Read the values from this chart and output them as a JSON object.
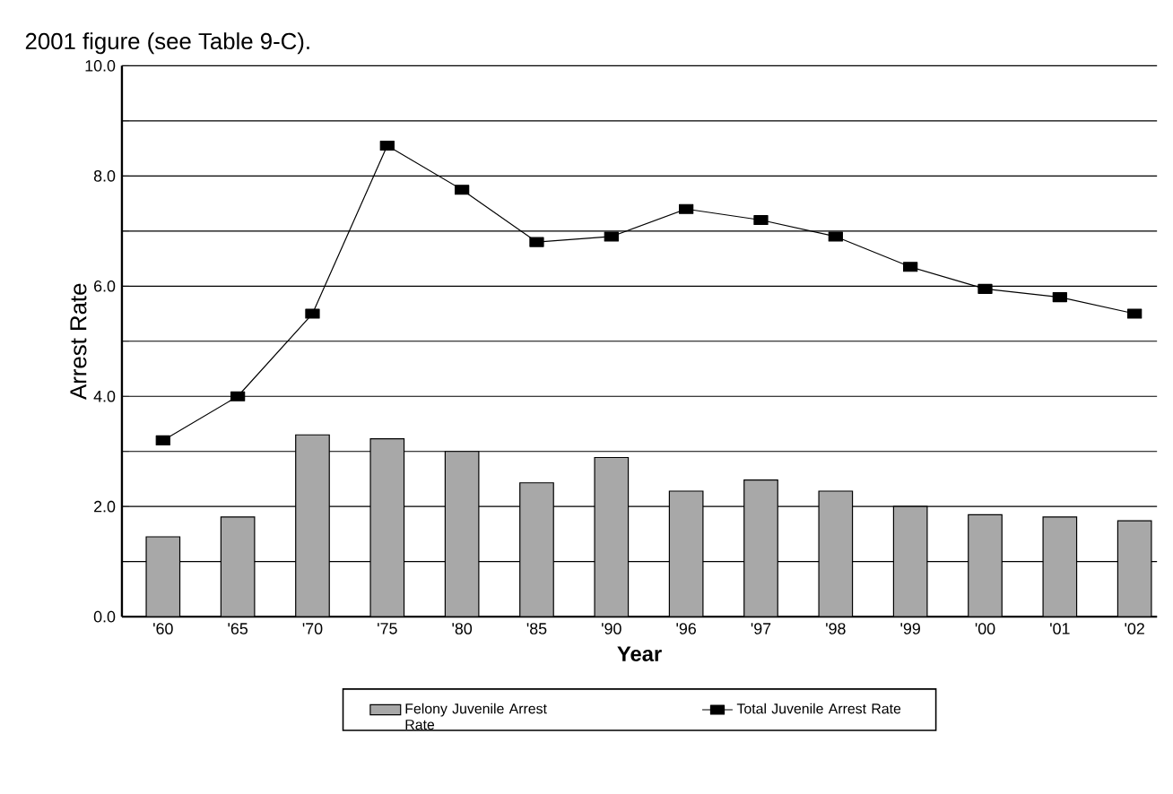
{
  "chart_data": {
    "type": "bar",
    "annotations": [
      "2001 figure (see Table 9-C)."
    ],
    "xlabel": "Year",
    "ylabel": "Arrest Rate",
    "categories": [
      "'60",
      "'65",
      "'70",
      "'75",
      "'80",
      "'85",
      "'90",
      "'96",
      "'97",
      "'98",
      "'99",
      "'00",
      "'01",
      "'02"
    ],
    "series": [
      {
        "name": "Felony Juvenile Arrest Rate",
        "color": "#a8a8a8",
        "values": [
          1.45,
          1.81,
          3.3,
          3.23,
          3.0,
          2.43,
          2.89,
          2.28,
          2.48,
          2.28,
          2.0,
          1.85,
          1.81,
          1.74
        ]
      },
      {
        "name": "Total Juvenile Arrest Rate",
        "type": "line",
        "color": "#000000",
        "marker": "square",
        "values": [
          3.2,
          4.0,
          5.5,
          8.55,
          7.75,
          6.8,
          6.9,
          7.4,
          7.2,
          6.9,
          6.35,
          5.95,
          5.8,
          5.5
        ]
      }
    ],
    "ylim": [
      0,
      10
    ],
    "yticks": [
      {
        "value": 0,
        "label": "0.0"
      },
      {
        "value": 1,
        "label": null
      },
      {
        "value": 2,
        "label": "2.0"
      },
      {
        "value": 3,
        "label": null
      },
      {
        "value": 4,
        "label": "4.0"
      },
      {
        "value": 5,
        "label": null
      },
      {
        "value": 6,
        "label": "6.0"
      },
      {
        "value": 7,
        "label": null
      },
      {
        "value": 8,
        "label": "8.0"
      },
      {
        "value": 9,
        "label": null
      },
      {
        "value": 10,
        "label": "10.0"
      }
    ],
    "grid": "y",
    "legend": "bottom"
  }
}
